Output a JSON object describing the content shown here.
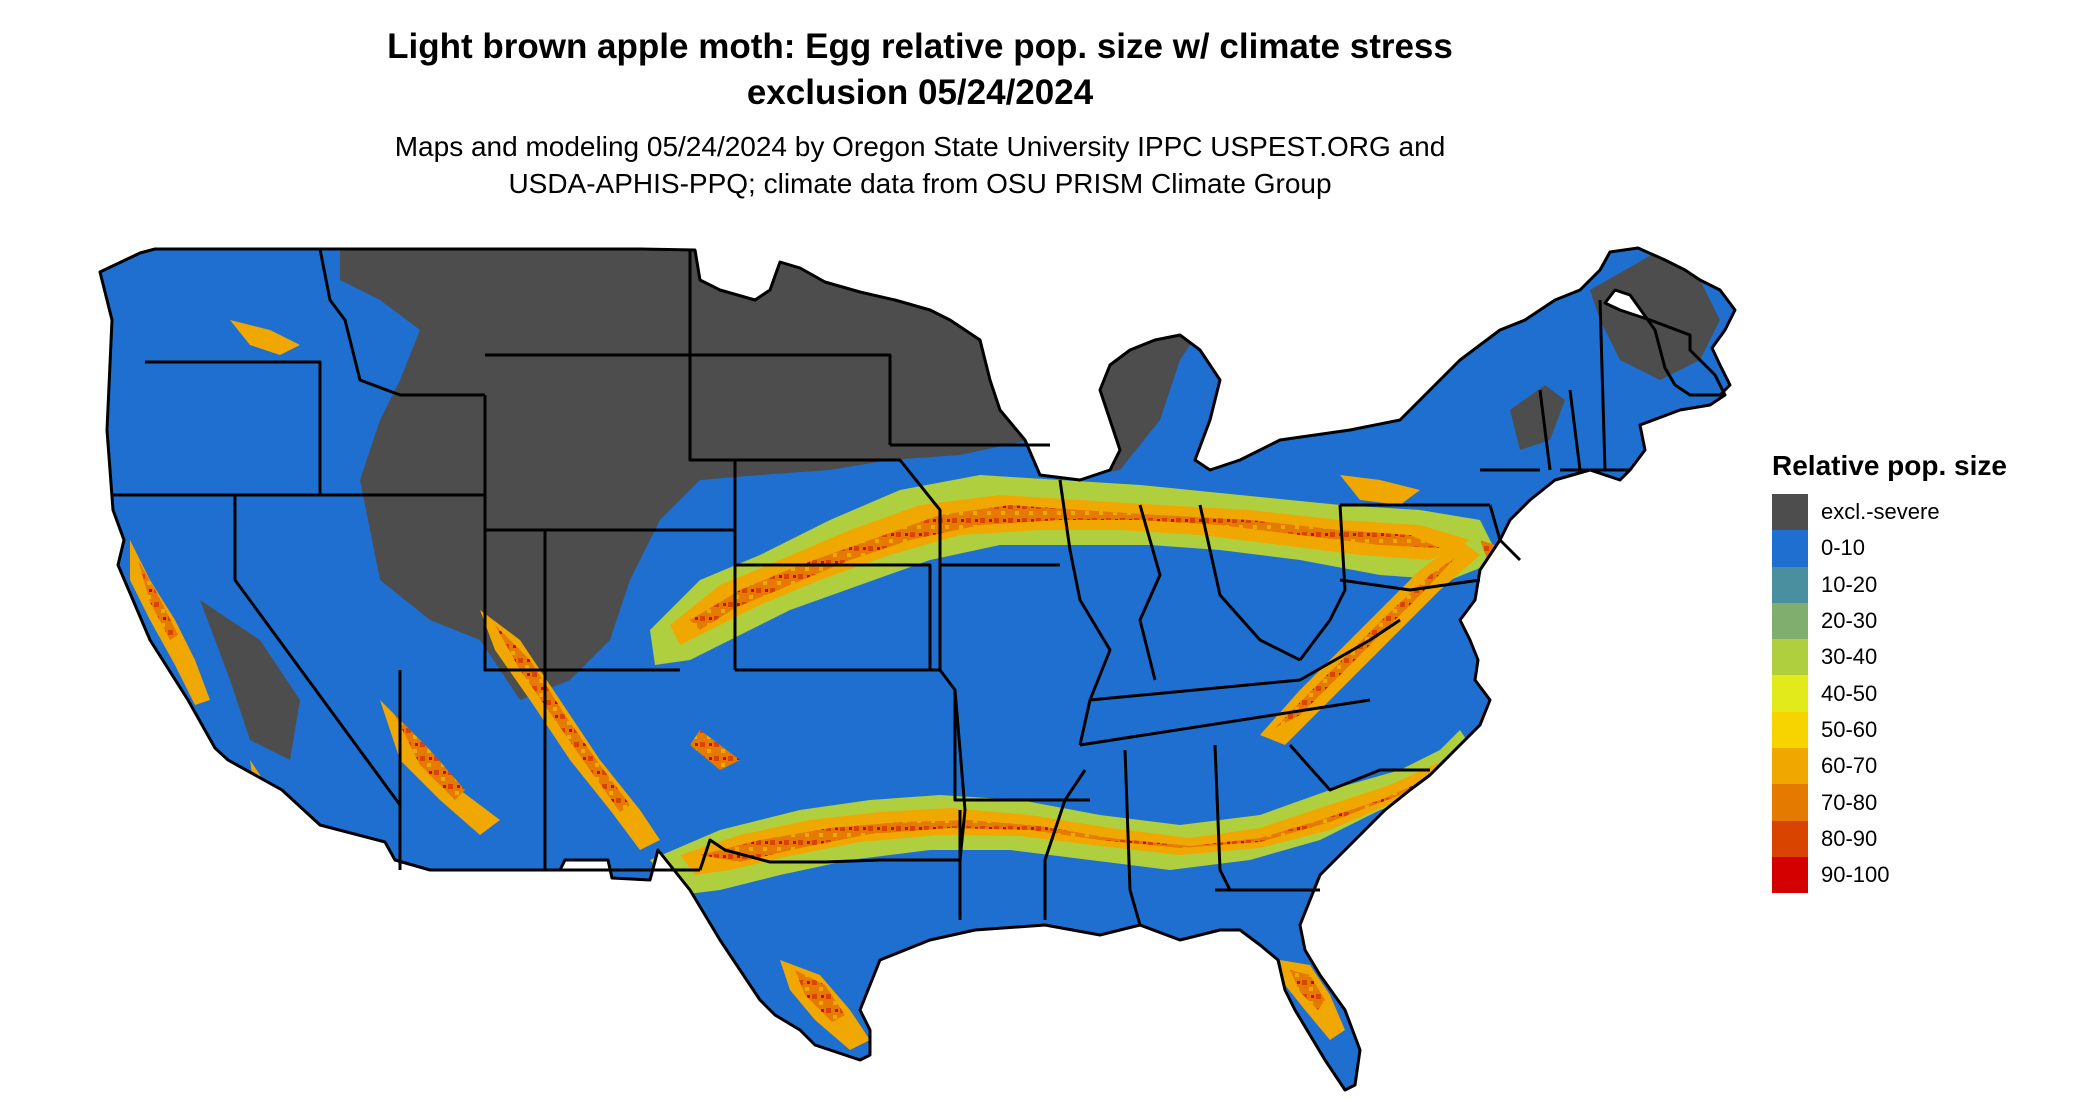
{
  "title_line1": "Light brown apple moth: Egg relative pop. size w/ climate stress",
  "title_line2": "exclusion 05/24/2024",
  "subtitle_line1": "Maps and modeling 05/24/2024 by Oregon State University IPPC USPEST.ORG and",
  "subtitle_line2": "USDA-APHIS-PPQ; climate data from OSU PRISM Climate Group",
  "legend": {
    "title": "Relative pop. size",
    "items": [
      {
        "label": "excl.-severe",
        "color": "#4d4d4d"
      },
      {
        "label": "0-10",
        "color": "#1f6fd1"
      },
      {
        "label": "10-20",
        "color": "#4a8fa0"
      },
      {
        "label": "20-30",
        "color": "#7fae6e"
      },
      {
        "label": "30-40",
        "color": "#b0cf3f"
      },
      {
        "label": "40-50",
        "color": "#e3ea1c"
      },
      {
        "label": "50-60",
        "color": "#f7d400"
      },
      {
        "label": "60-70",
        "color": "#f0a800"
      },
      {
        "label": "70-80",
        "color": "#e57a00"
      },
      {
        "label": "80-90",
        "color": "#d94400"
      },
      {
        "label": "90-100",
        "color": "#d40000"
      }
    ]
  }
}
